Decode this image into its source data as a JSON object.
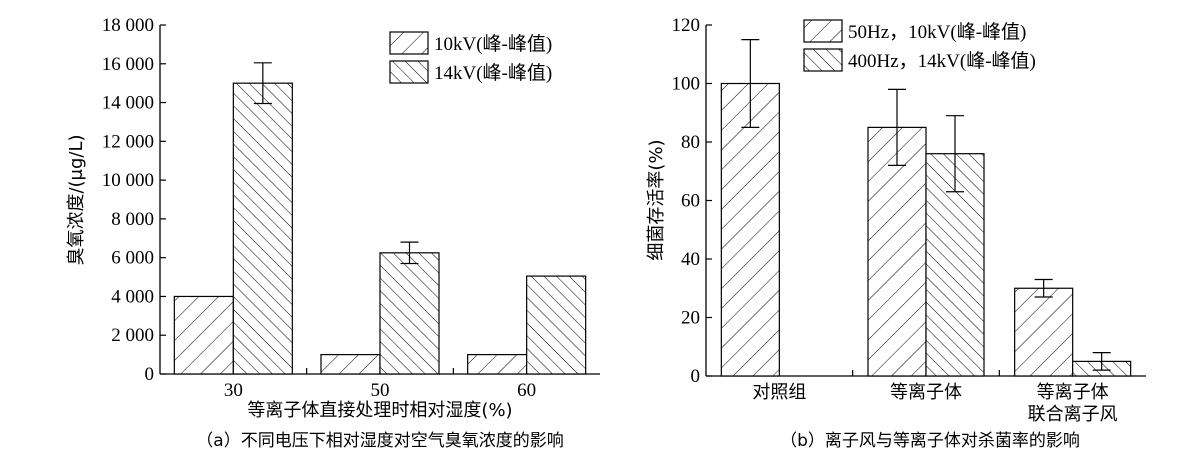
{
  "chart_data": [
    {
      "type": "bar",
      "categories": [
        "30",
        "50",
        "60"
      ],
      "series": [
        {
          "name": "10kV(峰-峰值)",
          "values": [
            4000,
            1000,
            1000
          ],
          "errors": [
            null,
            null,
            null
          ]
        },
        {
          "name": "14kV(峰-峰值)",
          "values": [
            15000,
            6250,
            5050
          ],
          "errors": [
            1050,
            550,
            null
          ]
        }
      ],
      "ylabel": "臭氧浓度/(μg/L)",
      "xlabel": "等离子体直接处理时相对湿度(%)",
      "caption": "（a）不同电压下相对湿度对空气臭氧浓度的影响",
      "ylim": [
        0,
        18000
      ],
      "yticks": [
        0,
        2000,
        4000,
        6000,
        8000,
        10000,
        12000,
        14000,
        16000,
        18000
      ],
      "ytick_labels": [
        "0",
        "2 000",
        "4 000",
        "6 000",
        "8 000",
        "10 000",
        "12 000",
        "14 000",
        "16 000",
        "18 000"
      ],
      "legend_position": "top-right",
      "grid": false
    },
    {
      "type": "bar",
      "categories": [
        "对照组",
        "等离子体",
        "等离子体\n联合离子风"
      ],
      "category_lines": [
        [
          "对照组"
        ],
        [
          "等离子体"
        ],
        [
          "等离子体",
          "联合离子风"
        ]
      ],
      "series": [
        {
          "name": "50Hz，10kV(峰-峰值)",
          "values": [
            100,
            85,
            30
          ],
          "errors": [
            15,
            13,
            3
          ]
        },
        {
          "name": "400Hz，14kV(峰-峰值)",
          "values": [
            null,
            76,
            5
          ],
          "errors": [
            null,
            13,
            3
          ]
        }
      ],
      "ylabel": "细菌存活率(%)",
      "xlabel": "",
      "caption": "（b）离子风与等离子体对杀菌率的影响",
      "ylim": [
        0,
        120
      ],
      "yticks": [
        0,
        20,
        40,
        60,
        80,
        100,
        120
      ],
      "ytick_labels": [
        "0",
        "20",
        "40",
        "60",
        "80",
        "100",
        "120"
      ],
      "legend_position": "top-right",
      "grid": false
    }
  ]
}
